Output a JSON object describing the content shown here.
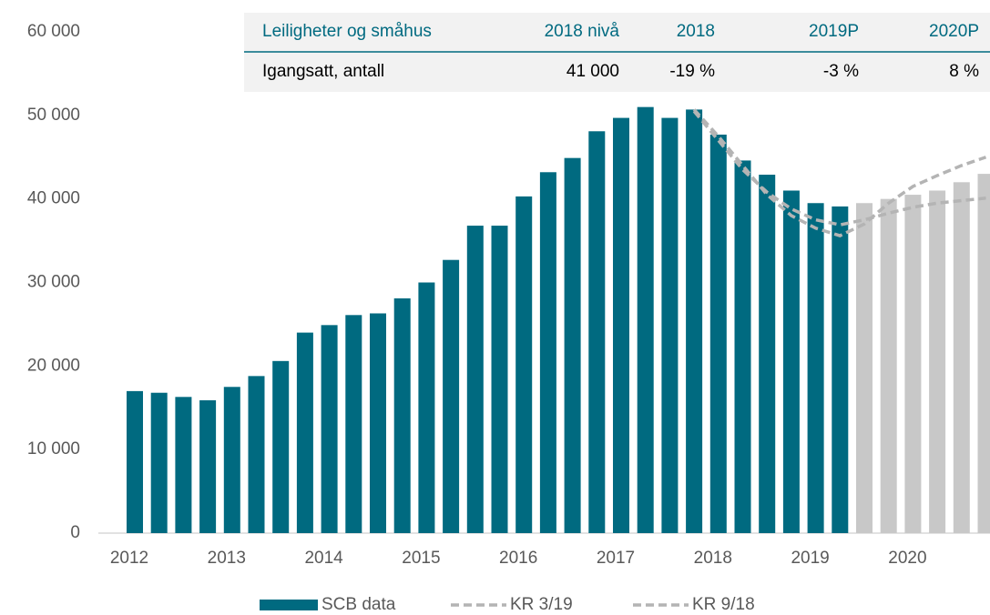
{
  "chart_data": {
    "type": "bar",
    "categories": [
      "2012",
      null,
      null,
      null,
      "2013",
      null,
      null,
      null,
      "2014",
      null,
      null,
      null,
      "2015",
      null,
      null,
      null,
      "2016",
      null,
      null,
      null,
      "2017",
      null,
      null,
      null,
      "2018",
      null,
      null,
      null,
      "2019",
      null,
      null,
      null,
      "2020",
      null,
      null,
      null
    ],
    "series": [
      {
        "name": "SCB data",
        "type": "bar",
        "color": "#006a80",
        "values": [
          17000,
          16800,
          16300,
          15900,
          17500,
          18800,
          20600,
          24000,
          24900,
          26100,
          26300,
          28100,
          30000,
          32700,
          36800,
          36800,
          40300,
          43200,
          44900,
          48100,
          49700,
          51000,
          49700,
          50700,
          47700,
          44600,
          42900,
          41000,
          39500,
          39100,
          null,
          null,
          null,
          null,
          null,
          null
        ]
      },
      {
        "type": "bar",
        "color": "#c8c8c8",
        "values": [
          null,
          null,
          null,
          null,
          null,
          null,
          null,
          null,
          null,
          null,
          null,
          null,
          null,
          null,
          null,
          null,
          null,
          null,
          null,
          null,
          null,
          null,
          null,
          null,
          null,
          null,
          null,
          null,
          null,
          null,
          39500,
          40000,
          40500,
          41000,
          42000,
          43000
        ]
      },
      {
        "name": "KR 3/19",
        "type": "line",
        "color": "#b4b4b4",
        "values": [
          null,
          null,
          null,
          null,
          null,
          null,
          null,
          null,
          null,
          null,
          null,
          null,
          null,
          null,
          null,
          null,
          null,
          null,
          null,
          null,
          null,
          null,
          null,
          50500,
          47000,
          43500,
          40800,
          38800,
          37500,
          36900,
          37500,
          38300,
          39000,
          39500,
          39800,
          40100
        ]
      },
      {
        "name": "KR 9/18",
        "type": "line",
        "color": "#b4b4b4",
        "values": [
          null,
          null,
          null,
          null,
          null,
          null,
          null,
          null,
          null,
          null,
          null,
          null,
          null,
          null,
          null,
          null,
          null,
          null,
          null,
          null,
          null,
          null,
          null,
          50700,
          47500,
          44000,
          40500,
          38000,
          36500,
          35600,
          37000,
          39500,
          41500,
          42800,
          44000,
          45000
        ]
      }
    ],
    "ylim": [
      0,
      60000
    ],
    "yticks": [
      {
        "value": 0,
        "label": "0"
      },
      {
        "value": 10000,
        "label": "10 000"
      },
      {
        "value": 20000,
        "label": "20 000"
      },
      {
        "value": 30000,
        "label": "30 000"
      },
      {
        "value": 40000,
        "label": "40 000"
      },
      {
        "value": 50000,
        "label": "50 000"
      },
      {
        "value": 60000,
        "label": "60 000"
      }
    ],
    "grid": false,
    "legend": "bottom",
    "table": {
      "header": [
        "Leiligheter og småhus",
        "2018 nivå",
        "2018",
        "2019P",
        "2020P"
      ],
      "rows": [
        [
          "Igangsatt, antall",
          "41 000",
          "-19 %",
          "-3 %",
          "8 %"
        ]
      ]
    }
  }
}
